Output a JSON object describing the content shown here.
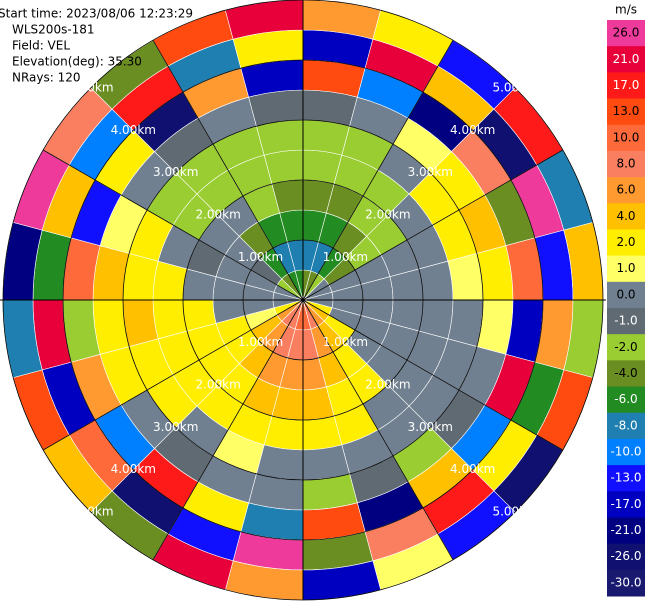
{
  "chart_data": {
    "type": "ppi",
    "header_lines": [
      "Start time: 2023/08/06 12:23:29",
      "WLS200s-181",
      "Field: VEL",
      "Elevation(deg): 35.30",
      "NRays: 120"
    ],
    "azimuths": [
      0,
      15,
      30,
      45,
      60,
      75,
      90,
      105,
      120,
      135,
      150,
      165,
      180,
      195,
      210,
      225,
      240,
      255,
      270,
      285,
      300,
      315,
      330,
      345,
      360
    ],
    "ranges": [
      0,
      0.5,
      1,
      1.5,
      2,
      2.5,
      3,
      3.5,
      4,
      4.5,
      5
    ],
    "rticks": [
      {
        "value": 1,
        "label": "1.00km"
      },
      {
        "value": 2,
        "label": "2.00km"
      },
      {
        "value": 3,
        "label": "3.00km"
      },
      {
        "value": 4,
        "label": "4.00km"
      },
      {
        "value": 5,
        "label": "5.00km"
      }
    ],
    "values": [
      [
        -4,
        -8,
        -6,
        -4,
        -2,
        -2,
        -1,
        13,
        -17,
        6
      ],
      [
        -4,
        -8,
        -6,
        -4,
        -2,
        -2,
        0,
        -10,
        21,
        2
      ],
      [
        -2,
        -6,
        -4,
        -2,
        -2,
        0,
        1,
        -21,
        4,
        -13
      ],
      [
        0,
        -4,
        -2,
        -2,
        0,
        2,
        2,
        8,
        -26,
        17
      ],
      [
        0,
        0,
        0,
        0,
        0,
        2,
        4,
        -4,
        26,
        -8
      ],
      [
        0,
        0,
        0,
        0,
        0,
        1,
        2,
        10,
        -13,
        4
      ],
      [
        0,
        0,
        0,
        0,
        0,
        0,
        1,
        -17,
        6,
        -2
      ],
      [
        2,
        0,
        0,
        0,
        0,
        0,
        0,
        21,
        -6,
        13
      ],
      [
        4,
        2,
        0,
        0,
        0,
        0,
        -1,
        -10,
        2,
        -26
      ],
      [
        6,
        4,
        2,
        2,
        0,
        0,
        -2,
        4,
        17,
        -13
      ],
      [
        8,
        6,
        4,
        2,
        2,
        0,
        -1,
        -21,
        8,
        1
      ],
      [
        10,
        8,
        6,
        4,
        2,
        0,
        -2,
        13,
        -4,
        -17
      ],
      [
        10,
        8,
        6,
        4,
        2,
        0,
        0,
        -8,
        26,
        6
      ],
      [
        8,
        8,
        6,
        4,
        2,
        1,
        0,
        2,
        -13,
        21
      ],
      [
        8,
        6,
        4,
        2,
        2,
        0,
        -1,
        17,
        -26,
        -4
      ],
      [
        6,
        4,
        2,
        2,
        2,
        2,
        0,
        -10,
        10,
        4
      ],
      [
        2,
        1,
        2,
        2,
        2,
        2,
        2,
        6,
        -17,
        13
      ],
      [
        0,
        0,
        0,
        2,
        2,
        4,
        2,
        -2,
        21,
        -8
      ],
      [
        0,
        0,
        0,
        0,
        2,
        2,
        4,
        10,
        -6,
        -21
      ],
      [
        0,
        0,
        0,
        -1,
        0,
        2,
        1,
        -13,
        4,
        26
      ],
      [
        -2,
        -1,
        0,
        0,
        -2,
        -2,
        0,
        2,
        -10,
        8
      ],
      [
        -4,
        -6,
        -4,
        0,
        -2,
        -2,
        -1,
        -26,
        17,
        -4
      ],
      [
        -6,
        -8,
        -6,
        -2,
        -2,
        -2,
        0,
        6,
        -8,
        13
      ],
      [
        -6,
        -8,
        -6,
        -4,
        -2,
        -2,
        -1,
        -17,
        2,
        21
      ]
    ],
    "colorbar": {
      "title": "m/s",
      "ticks": [
        {
          "value": 26,
          "label": "26.0"
        },
        {
          "value": 21,
          "label": "21.0"
        },
        {
          "value": 17,
          "label": "17.0"
        },
        {
          "value": 13,
          "label": "13.0"
        },
        {
          "value": 10,
          "label": "10.0"
        },
        {
          "value": 8,
          "label": "8.0"
        },
        {
          "value": 6,
          "label": "6.0"
        },
        {
          "value": 4,
          "label": "4.0"
        },
        {
          "value": 2,
          "label": "2.0"
        },
        {
          "value": 1,
          "label": "1.0"
        },
        {
          "value": 0,
          "label": "0.0"
        },
        {
          "value": -1,
          "label": "-1.0"
        },
        {
          "value": -2,
          "label": "-2.0"
        },
        {
          "value": -4,
          "label": "-4.0"
        },
        {
          "value": -6,
          "label": "-6.0"
        },
        {
          "value": -8,
          "label": "-8.0"
        },
        {
          "value": -10,
          "label": "-10.0"
        },
        {
          "value": -13,
          "label": "-13.0"
        },
        {
          "value": -17,
          "label": "-17.0"
        },
        {
          "value": -21,
          "label": "-21.0"
        },
        {
          "value": -26,
          "label": "-26.0"
        },
        {
          "value": -30,
          "label": "-30.0"
        }
      ],
      "colors": [
        "#ee3a9a",
        "#e8003a",
        "#ff1a1a",
        "#ff4a10",
        "#ff6a3a",
        "#fa7f60",
        "#ff9a30",
        "#ffc000",
        "#ffee00",
        "#ffff66",
        "#708090",
        "#606a72",
        "#9acd32",
        "#6b8e23",
        "#228b22",
        "#1e7fb0",
        "#0080ff",
        "#1010ff",
        "#0000c0",
        "#000080",
        "#101070",
        "#191970"
      ]
    }
  }
}
